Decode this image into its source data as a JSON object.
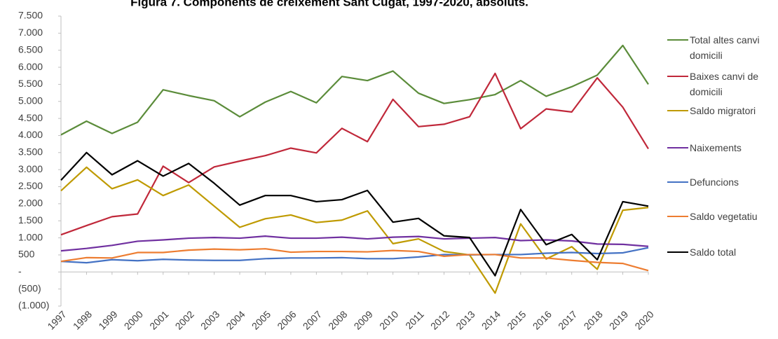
{
  "chart_data": {
    "type": "line",
    "title": "Figura 7. Components de creixement Sant Cugat, 1997-2020, absoluts.",
    "categories": [
      "1997",
      "1998",
      "1999",
      "2000",
      "2001",
      "2002",
      "2003",
      "2004",
      "2005",
      "2006",
      "2007",
      "2008",
      "2009",
      "2010",
      "2011",
      "2012",
      "2013",
      "2014",
      "2015",
      "2016",
      "2017",
      "2018",
      "2019",
      "2020"
    ],
    "ylim": [
      -1000,
      7500
    ],
    "yticks": [
      {
        "value": 7500,
        "label": "7.500"
      },
      {
        "value": 7000,
        "label": "7.000"
      },
      {
        "value": 6500,
        "label": "6.500"
      },
      {
        "value": 6000,
        "label": "6.000"
      },
      {
        "value": 5500,
        "label": "5.500"
      },
      {
        "value": 5000,
        "label": "5.000"
      },
      {
        "value": 4500,
        "label": "4.500"
      },
      {
        "value": 4000,
        "label": "4.000"
      },
      {
        "value": 3500,
        "label": "3.500"
      },
      {
        "value": 3000,
        "label": "3.000"
      },
      {
        "value": 2500,
        "label": "2.500"
      },
      {
        "value": 2000,
        "label": "2.000"
      },
      {
        "value": 1500,
        "label": "1.500"
      },
      {
        "value": 1000,
        "label": "1.000"
      },
      500,
      {
        "value": 0,
        "label": "-"
      },
      {
        "value": -500,
        "label": "(500)"
      },
      {
        "value": -1000,
        "label": "(1.000)"
      }
    ],
    "grid": false,
    "legend": "right",
    "series": [
      {
        "name": "Total altes canvi domicili",
        "color": "#5b8c3a",
        "values": [
          4020,
          4420,
          4060,
          4390,
          5340,
          5170,
          5020,
          4550,
          4980,
          5290,
          4960,
          5730,
          5610,
          5890,
          5240,
          4940,
          5050,
          5200,
          5610,
          5150,
          5430,
          5770,
          6640,
          5500
        ]
      },
      {
        "name": "Baixes canvi de domicili",
        "color": "#c0283a",
        "values": [
          1090,
          1360,
          1620,
          1700,
          3100,
          2620,
          3080,
          3250,
          3410,
          3630,
          3490,
          4210,
          3820,
          5060,
          4260,
          4330,
          4550,
          5820,
          4200,
          4780,
          4690,
          5690,
          4830,
          3610
        ]
      },
      {
        "name": "Saldo migratori",
        "color": "#bf9a00",
        "values": [
          2380,
          3070,
          2440,
          2700,
          2240,
          2550,
          1930,
          1310,
          1560,
          1670,
          1450,
          1520,
          1790,
          830,
          970,
          600,
          500,
          -620,
          1410,
          380,
          740,
          80,
          1810,
          1890
        ]
      },
      {
        "name": "Naixements",
        "color": "#7030a0",
        "values": [
          620,
          690,
          780,
          900,
          940,
          990,
          1010,
          990,
          1050,
          990,
          990,
          1020,
          970,
          1020,
          1040,
          970,
          990,
          1010,
          920,
          940,
          910,
          820,
          810,
          750
        ]
      },
      {
        "name": "Defuncions",
        "color": "#4472c4",
        "values": [
          310,
          270,
          360,
          330,
          370,
          350,
          340,
          340,
          390,
          410,
          410,
          420,
          390,
          390,
          440,
          510,
          500,
          510,
          510,
          550,
          570,
          540,
          560,
          710
        ]
      },
      {
        "name": "Saldo vegetatiu",
        "color": "#ed7d31",
        "values": [
          310,
          420,
          410,
          570,
          570,
          640,
          670,
          650,
          680,
          580,
          600,
          600,
          590,
          630,
          600,
          460,
          510,
          510,
          410,
          410,
          340,
          280,
          250,
          40
        ]
      },
      {
        "name": "Saldo total",
        "color": "#000000",
        "values": [
          2690,
          3500,
          2850,
          3260,
          2810,
          3180,
          2600,
          1960,
          2240,
          2240,
          2060,
          2120,
          2390,
          1460,
          1570,
          1060,
          1010,
          -110,
          1830,
          800,
          1100,
          360,
          2060,
          1930
        ]
      }
    ]
  }
}
